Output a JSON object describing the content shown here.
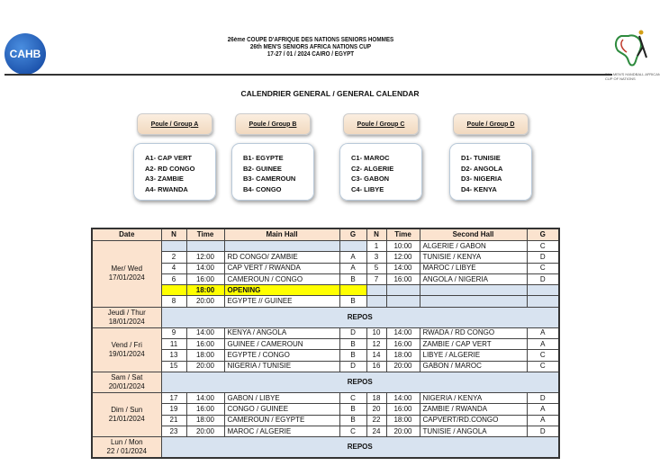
{
  "header": {
    "logo_left": "CAHB",
    "line1": "26ème COUPE D'AFRIQUE DES NATIONS SENIORS HOMMES",
    "line2": "26th MEN'S SENIORS AFRICA NATIONS CUP",
    "line3": "17-27 / 01 / 2024 CAIRO / EGYPT",
    "logo_right_text": "26th MEN'S HANDBALL AFRICAN CUP OF NATIONS"
  },
  "title": "CALENDRIER GENERAL / GENERAL CALENDAR",
  "groups": [
    {
      "label": "Poule / Group A",
      "teams": [
        "A1- CAP VERT",
        "A2- RD CONGO",
        "A3- ZAMBIE",
        "A4- RWANDA"
      ]
    },
    {
      "label": "Poule / Group B",
      "teams": [
        "B1- EGYPTE",
        "B2- GUINEE",
        "B3- CAMEROUN",
        "B4- CONGO"
      ]
    },
    {
      "label": "Poule / Group C",
      "teams": [
        "C1- MAROC",
        "C2- ALGERIE",
        "C3- GABON",
        "C4- LIBYE"
      ]
    },
    {
      "label": "Poule / Group D",
      "teams": [
        "D1- TUNISIE",
        "D2- ANGOLA",
        "D3- NIGERIA",
        "D4- KENYA"
      ]
    }
  ],
  "table": {
    "headers": [
      "Date",
      "N",
      "Time",
      "Main Hall",
      "G",
      "N",
      "Time",
      "Second Hall",
      "G"
    ],
    "days": [
      {
        "date": [
          "Mer/ Wed",
          "17/01/2024"
        ],
        "rows": [
          [
            "",
            "",
            "",
            "",
            "1",
            "10:00",
            "ALGERIE / GABON",
            "C"
          ],
          [
            "2",
            "12:00",
            "RD CONGO/ ZAMBIE",
            "A",
            "3",
            "12:00",
            "TUNISIE / KENYA",
            "D"
          ],
          [
            "4",
            "14:00",
            "CAP VERT / RWANDA",
            "A",
            "5",
            "14:00",
            "MAROC / LIBYE",
            "C"
          ],
          [
            "6",
            "16:00",
            "CAMEROUN / CONGO",
            "B",
            "7",
            "16:00",
            "ANGOLA / NIGERIA",
            "D"
          ],
          [
            "",
            "18:00",
            "OPENING",
            "",
            "",
            "",
            "",
            ""
          ],
          [
            "8",
            "20:00",
            "EGYPTE // GUINEE",
            "B",
            "",
            "",
            "",
            ""
          ]
        ]
      },
      {
        "date": [
          "Jeudi / Thur",
          "18/01/2024"
        ],
        "repos": "REPOS"
      },
      {
        "date": [
          "Vend / Fri",
          "19/01/2024"
        ],
        "rows": [
          [
            "9",
            "14:00",
            "KENYA / ANGOLA",
            "D",
            "10",
            "14:00",
            "RWADA / RD CONGO",
            "A"
          ],
          [
            "11",
            "16:00",
            "GUINEE / CAMEROUN",
            "B",
            "12",
            "16:00",
            "ZAMBIE / CAP VERT",
            "A"
          ],
          [
            "13",
            "18:00",
            "EGYPTE / CONGO",
            "B",
            "14",
            "18:00",
            "LIBYE / ALGERIE",
            "C"
          ],
          [
            "15",
            "20:00",
            "NIGERIA / TUNISIE",
            "D",
            "16",
            "20:00",
            "GABON / MAROC",
            "C"
          ]
        ]
      },
      {
        "date": [
          "Sam / Sat",
          "20/01/2024"
        ],
        "repos": "REPOS"
      },
      {
        "date": [
          "Dim / Sun",
          "21/01/2024"
        ],
        "rows": [
          [
            "17",
            "14:00",
            "GABON / LIBYE",
            "C",
            "18",
            "14:00",
            "NIGERIA / KENYA",
            "D"
          ],
          [
            "19",
            "16:00",
            "CONGO / GUINEE",
            "B",
            "20",
            "16:00",
            "ZAMBIE / RWANDA",
            "A"
          ],
          [
            "21",
            "18:00",
            "CAMEROUN / EGYPTE",
            "B",
            "22",
            "18:00",
            "CAPVERT/RD.CONGO",
            "A"
          ],
          [
            "23",
            "20:00",
            "MAROC / ALGERIE",
            "C",
            "24",
            "20:00",
            "TUNISIE / ANGOLA",
            "D"
          ]
        ]
      },
      {
        "date": [
          "Lun / Mon",
          "22 / 01/2024"
        ],
        "repos": "REPOS"
      }
    ]
  },
  "colors": {
    "date_bg": "#fbe3cf",
    "empty_bg": "#d8e3f0",
    "opening_bg": "#ffff00"
  }
}
